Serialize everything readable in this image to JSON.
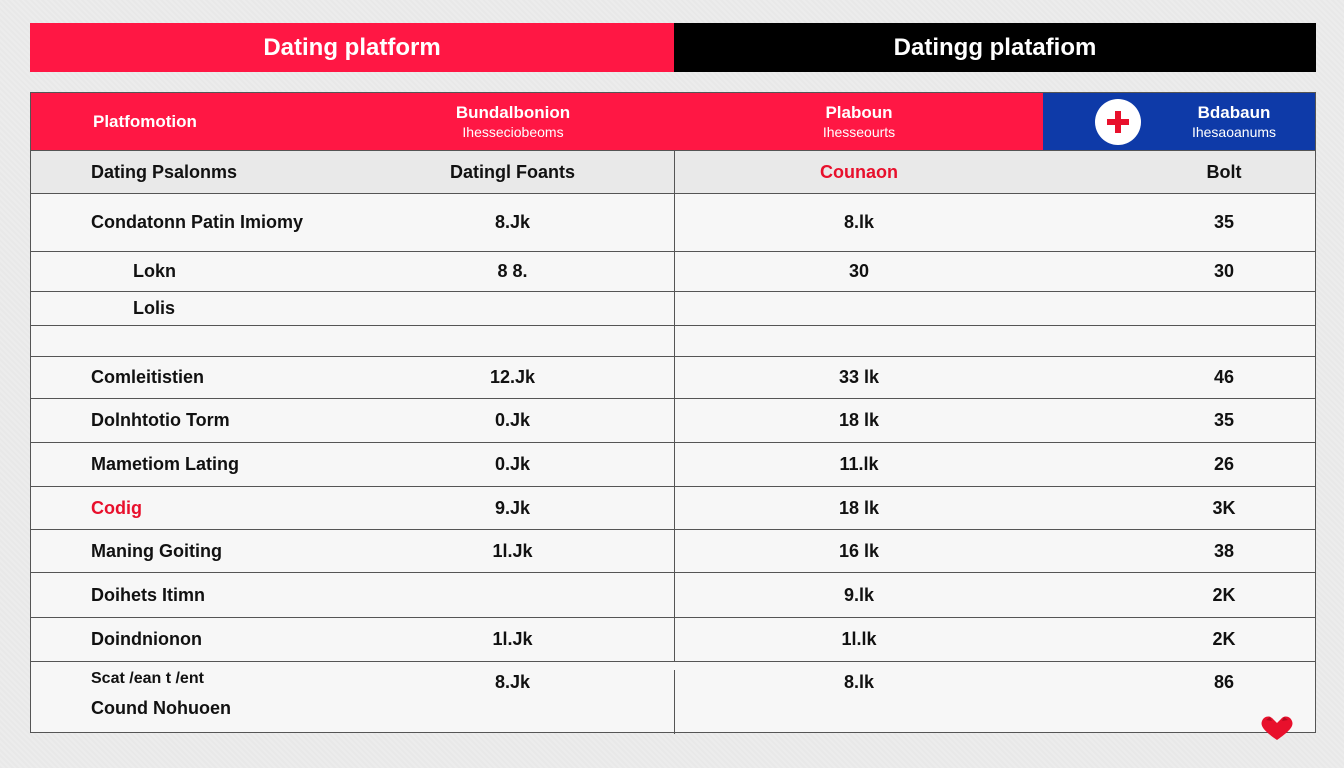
{
  "title_left": "Dating platform",
  "title_right": "Datingg platafiom",
  "header": {
    "col1": "Platfomotion",
    "col2_top": "Bundalbonion",
    "col2_sub": "Ihesseciobeoms",
    "col3_top": "Plaboun",
    "col3_sub": "Ihesseourts",
    "col4_top": "Bdabaun",
    "col4_sub": "Ihesaoanums",
    "badge_icon": "plus-icon"
  },
  "subheader": {
    "col1": "Dating Psalonms",
    "col2": "Datingl Foants",
    "col3": "Counaon",
    "col4": "Bolt"
  },
  "rows": [
    {
      "label": "Condatonn Patin Imiomy",
      "c2": "8.Jk",
      "c3": "8.lk",
      "c4": "35"
    },
    {
      "label": "Lokn",
      "c2": "8 8.",
      "c3": "30",
      "c4": "30"
    },
    {
      "label": "Lolis",
      "c2": "",
      "c3": "",
      "c4": ""
    },
    {
      "label": "",
      "c2": "",
      "c3": "",
      "c4": ""
    },
    {
      "label": "Comleitistien",
      "c2": "12.Jk",
      "c3": "33 lk",
      "c4": "46"
    },
    {
      "label": "Dolnhtotio Torm",
      "c2": "0.Jk",
      "c3": "18 lk",
      "c4": "35"
    },
    {
      "label": "Mametiom Lating",
      "c2": "0.Jk",
      "c3": "11.lk",
      "c4": "26"
    },
    {
      "label": "Codig",
      "c2": "9.Jk",
      "c3": "18 lk",
      "c4": "3K"
    },
    {
      "label": "Maning Goiting",
      "c2": "1l.Jk",
      "c3": "16 lk",
      "c4": "38"
    },
    {
      "label": "Doihets Itimn",
      "c2": "",
      "c3": "9.lk",
      "c4": "2K"
    },
    {
      "label": "Doindnionon",
      "c2": "1l.Jk",
      "c3": "1l.lk",
      "c4": "2K"
    },
    {
      "label": "Scat /ean t /ent",
      "label2": "Cound Nohuoen",
      "c2": "8.Jk",
      "c3": "8.lk",
      "c4": "86"
    }
  ],
  "colors": {
    "accent_red": "#ff1744",
    "header_blue": "#0e3aa8",
    "title_black": "#000000"
  },
  "corner_icon": "heart-icon"
}
